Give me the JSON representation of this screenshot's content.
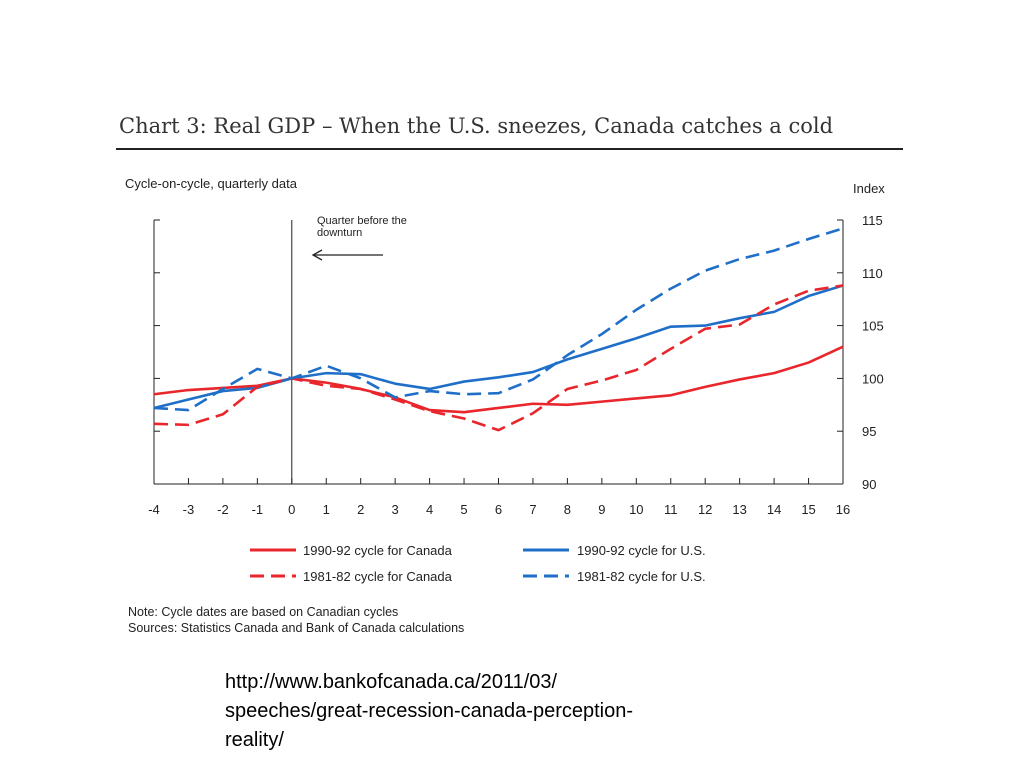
{
  "chart_data": {
    "type": "line",
    "title": "Chart 3: Real GDP – When the U.S. sneezes, Canada catches a cold",
    "subtitle": "Cycle-on-cycle, quarterly data",
    "ylabel": "Index",
    "xlabel": "",
    "x": [
      -4,
      -3,
      -2,
      -1,
      0,
      1,
      2,
      3,
      4,
      5,
      6,
      7,
      8,
      9,
      10,
      11,
      12,
      13,
      14,
      15,
      16
    ],
    "ylim": [
      90,
      115
    ],
    "yticks": [
      90,
      95,
      100,
      105,
      110,
      115
    ],
    "xlim": [
      -4,
      16
    ],
    "grid": false,
    "legend_position": "bottom",
    "series": [
      {
        "name": "1990-92 cycle for Canada",
        "color": "#e8262b",
        "dash": false,
        "values": [
          98.5,
          98.9,
          99.1,
          99.3,
          100,
          99.6,
          99.0,
          98.2,
          97.0,
          96.8,
          97.2,
          97.6,
          97.5,
          97.8,
          98.1,
          98.4,
          99.2,
          99.9,
          100.5,
          101.5,
          103.0
        ]
      },
      {
        "name": "1990-92 cycle for U.S.",
        "color": "#1f6fc9",
        "dash": false,
        "values": [
          97.2,
          98.0,
          98.8,
          99.1,
          100,
          100.5,
          100.4,
          99.5,
          99.0,
          99.7,
          100.1,
          100.6,
          101.8,
          102.8,
          103.8,
          104.9,
          105.0,
          105.7,
          106.3,
          107.8,
          108.8
        ]
      },
      {
        "name": "1981-82 cycle for Canada",
        "color": "#e8262b",
        "dash": true,
        "values": [
          95.7,
          95.6,
          96.6,
          99.2,
          100,
          99.3,
          99.0,
          98.0,
          96.9,
          96.2,
          95.1,
          96.7,
          99.0,
          99.8,
          100.8,
          102.8,
          104.7,
          105.1,
          107.0,
          108.3,
          108.8
        ]
      },
      {
        "name": "1981-82 cycle for U.S.",
        "color": "#1f6fc9",
        "dash": true,
        "values": [
          97.2,
          97.0,
          99.0,
          100.9,
          100,
          101.2,
          100.0,
          98.2,
          98.8,
          98.5,
          98.6,
          99.9,
          102.2,
          104.2,
          106.5,
          108.5,
          110.2,
          111.3,
          112.1,
          113.2,
          114.2
        ]
      }
    ],
    "annotations": [
      {
        "text_lines": [
          "Quarter before the",
          "downturn"
        ],
        "x": 0,
        "arrow": "left"
      }
    ]
  },
  "note": "Note: Cycle dates are based on Canadian cycles",
  "sources": "Sources: Statistics Canada and Bank of Canada calculations",
  "url_lines": [
    "http://www.bankofcanada.ca/2011/03/",
    "speeches/great-recession-canada-perception-",
    "reality/"
  ]
}
